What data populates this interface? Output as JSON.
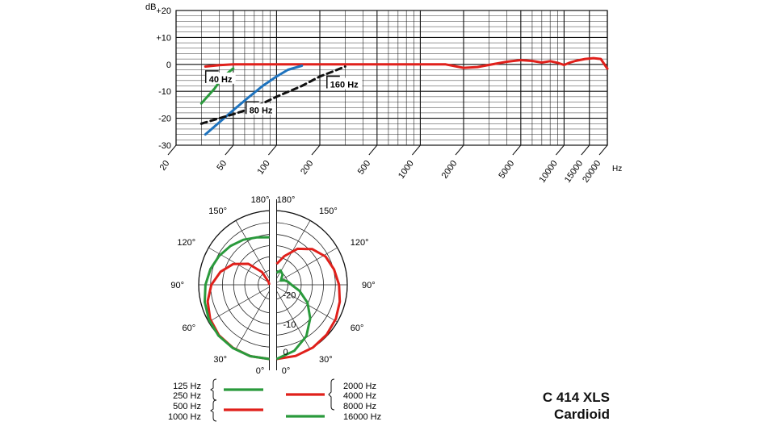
{
  "model": {
    "name": "C 414 XLS",
    "pattern": "Cardioid"
  },
  "chart_data": [
    {
      "type": "line",
      "title": "",
      "xscale": "log",
      "xlim": [
        20,
        20000
      ],
      "ylim": [
        -30,
        20
      ],
      "xlabel": "Hz",
      "ylabel": "dB",
      "xtick_labels": [
        "20",
        "50",
        "100",
        "200",
        "500",
        "1000",
        "2000",
        "5000",
        "10000",
        "15000",
        "20000"
      ],
      "xtick_values": [
        20,
        50,
        100,
        200,
        500,
        1000,
        2000,
        5000,
        10000,
        15000,
        20000
      ],
      "ytick_labels": [
        "+20",
        "+10",
        "0",
        "-10",
        "-20",
        "-30"
      ],
      "ytick_values": [
        20,
        10,
        0,
        -10,
        -20,
        -30
      ],
      "grid": true,
      "series": [
        {
          "color": "#e0201b",
          "style": "solid",
          "x": [
            32,
            40,
            50,
            70,
            100,
            160,
            300,
            600,
            1000,
            1500,
            2000,
            2500,
            3000,
            4000,
            5000,
            6000,
            7000,
            8000,
            9000,
            10000,
            11000,
            12000,
            14000,
            16000,
            18000,
            20000
          ],
          "y": [
            -0.8,
            -0.3,
            0,
            0,
            0,
            0,
            0,
            0,
            0,
            0,
            -1.3,
            -1,
            -0.2,
            1,
            1.6,
            1.3,
            0.7,
            1.2,
            0.6,
            -0.2,
            0.7,
            1.3,
            2,
            2.3,
            2,
            -1.6
          ]
        },
        {
          "color": "#2a9a3c",
          "style": "solid",
          "x": [
            30,
            33,
            37,
            40,
            45,
            50
          ],
          "y": [
            -14.5,
            -12,
            -9,
            -6.5,
            -3.5,
            -1.5
          ]
        },
        {
          "color": "#1e73be",
          "style": "solid",
          "x": [
            32,
            40,
            50,
            63,
            80,
            100,
            120,
            150
          ],
          "y": [
            -26,
            -21.5,
            -17,
            -12.5,
            -8,
            -4.5,
            -2,
            -0.5
          ]
        },
        {
          "color": "#111111",
          "style": "dashed",
          "x": [
            30,
            40,
            50,
            70,
            100,
            150,
            200,
            250,
            300
          ],
          "y": [
            -22,
            -20,
            -18.5,
            -16,
            -12,
            -8,
            -4.5,
            -2.5,
            -0.8
          ]
        }
      ],
      "annotations": [
        {
          "label": "40 Hz",
          "x": 33,
          "y": -6
        },
        {
          "label": "80 Hz",
          "x": 63,
          "y": -17.5
        },
        {
          "label": "160 Hz",
          "x": 230,
          "y": -8
        }
      ]
    },
    {
      "type": "polar",
      "title": "",
      "angle_labels_left": [
        "180°",
        "150°",
        "120°",
        "90°",
        "60°",
        "30°",
        "0°"
      ],
      "angle_labels_right": [
        "180°",
        "150°",
        "120°",
        "90°",
        "60°",
        "30°",
        "0°"
      ],
      "radial_labels": [
        "-20",
        "-10",
        "0"
      ],
      "radial_range_db": [
        -25,
        0
      ],
      "left_series": [
        {
          "color": "#e0201b",
          "legend": "500 Hz / 1000 Hz",
          "angles": [
            0,
            15,
            30,
            45,
            60,
            75,
            90,
            105,
            120,
            135,
            150,
            165,
            180
          ],
          "db": [
            0,
            -0.1,
            -0.5,
            -1,
            -2,
            -3.5,
            -5.5,
            -8,
            -11,
            -15,
            -20,
            -24,
            -25
          ]
        },
        {
          "color": "#2a9a3c",
          "legend": "125 Hz / 250 Hz",
          "angles": [
            0,
            15,
            30,
            45,
            60,
            75,
            90,
            105,
            120,
            135,
            150,
            165,
            180
          ],
          "db": [
            0,
            -0.1,
            -0.4,
            -0.8,
            -1.5,
            -2.5,
            -3.5,
            -4.5,
            -5.5,
            -6.5,
            -7.5,
            -8.5,
            -9
          ]
        }
      ],
      "right_series": [
        {
          "color": "#e0201b",
          "legend": "2000 Hz / 4000 Hz / 8000 Hz",
          "angles": [
            0,
            15,
            30,
            45,
            60,
            75,
            90,
            105,
            120,
            135,
            150,
            165,
            180
          ],
          "db": [
            0,
            -0.2,
            -0.6,
            -1.2,
            -2,
            -3,
            -4,
            -5,
            -6,
            -8,
            -11,
            -15,
            -18
          ]
        },
        {
          "color": "#2a9a3c",
          "legend": "16000 Hz",
          "angles": [
            0,
            15,
            30,
            45,
            60,
            75,
            90,
            105,
            120,
            135,
            150,
            165,
            180
          ],
          "db": [
            0,
            -2,
            -5,
            -9,
            -13,
            -17,
            -20,
            -21,
            -22,
            -23,
            -21,
            -20,
            -21
          ]
        }
      ],
      "legend_left": {
        "labels": [
          "125 Hz",
          "250 Hz",
          "500 Hz",
          "1000 Hz"
        ],
        "groups": [
          {
            "color": "#2a9a3c"
          },
          {
            "color": "#e0201b"
          }
        ]
      },
      "legend_right": {
        "labels": [
          "2000 Hz",
          "4000 Hz",
          "8000 Hz",
          "16000 Hz"
        ],
        "groups": [
          {
            "color": "#e0201b"
          },
          {
            "color": "#2a9a3c"
          }
        ]
      }
    }
  ]
}
